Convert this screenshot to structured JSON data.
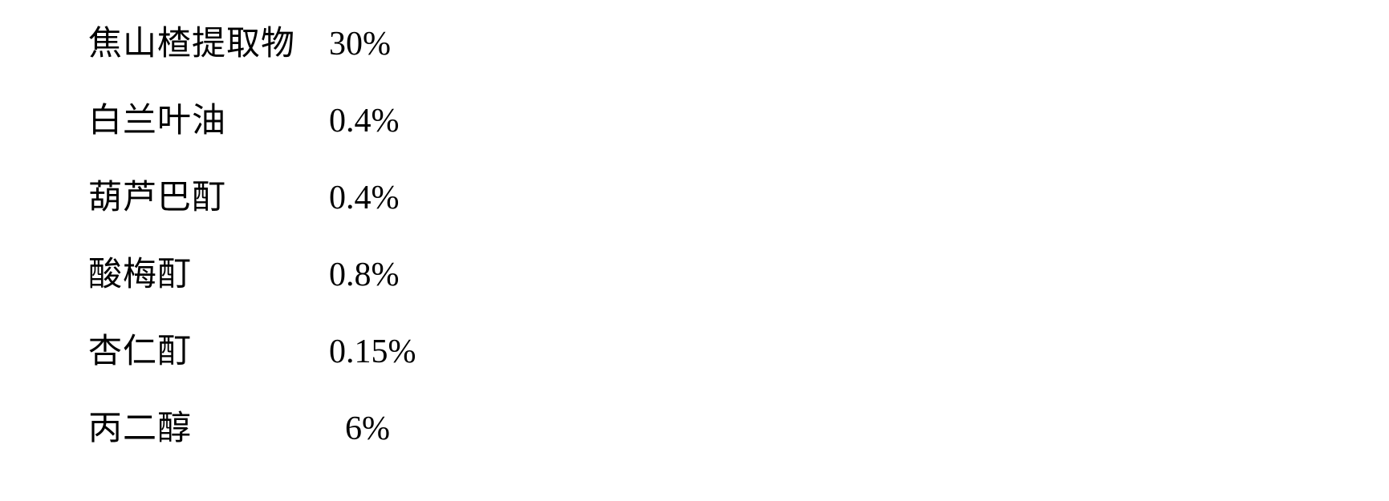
{
  "type": "table",
  "background_color": "#ffffff",
  "text_color": "#000000",
  "label_fontsize": 42,
  "value_fontsize": 42,
  "rows": [
    {
      "label": "焦山楂提取物",
      "value": "30%",
      "indent": false
    },
    {
      "label": "白兰叶油",
      "value": "0.4%",
      "indent": false
    },
    {
      "label": "葫芦巴酊",
      "value": "0.4%",
      "indent": false
    },
    {
      "label": "酸梅酊",
      "value": "0.8%",
      "indent": false
    },
    {
      "label": "杏仁酊",
      "value": "0.15%",
      "indent": false
    },
    {
      "label": "丙二醇",
      "value": "6%",
      "indent": true
    }
  ]
}
